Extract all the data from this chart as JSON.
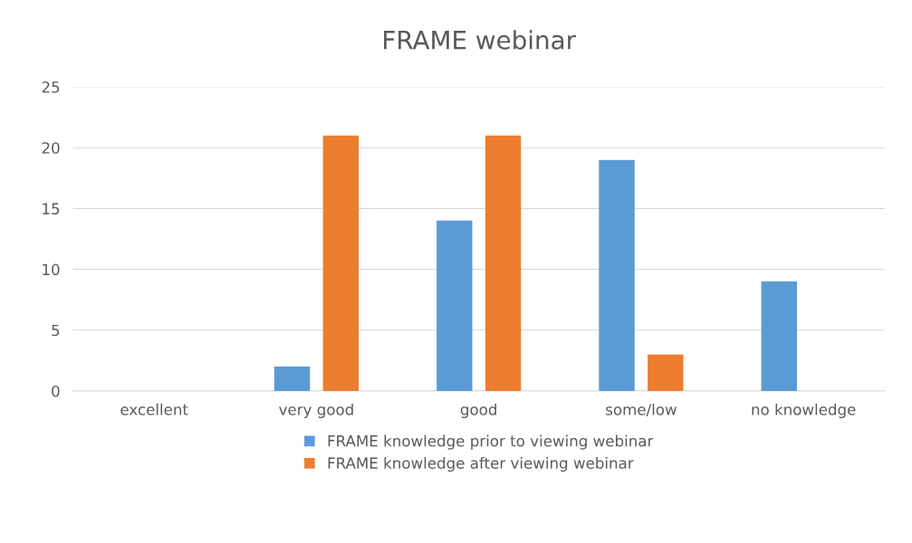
{
  "chart_data": {
    "type": "bar",
    "title": "FRAME webinar",
    "categories": [
      "excellent",
      "very good",
      "good",
      "some/low",
      "no knowledge"
    ],
    "series": [
      {
        "name": "FRAME knowledge prior to viewing webinar",
        "color": "#5b9bd5",
        "values": [
          0,
          2,
          14,
          19,
          9
        ]
      },
      {
        "name": "FRAME knowledge after viewing webinar",
        "color": "#ed7d31",
        "values": [
          0,
          21,
          21,
          3,
          0
        ]
      }
    ],
    "ylim": [
      0,
      25
    ],
    "yticks": [
      0,
      5,
      10,
      15,
      20,
      25
    ],
    "grid": "y",
    "legend": "bottom"
  }
}
